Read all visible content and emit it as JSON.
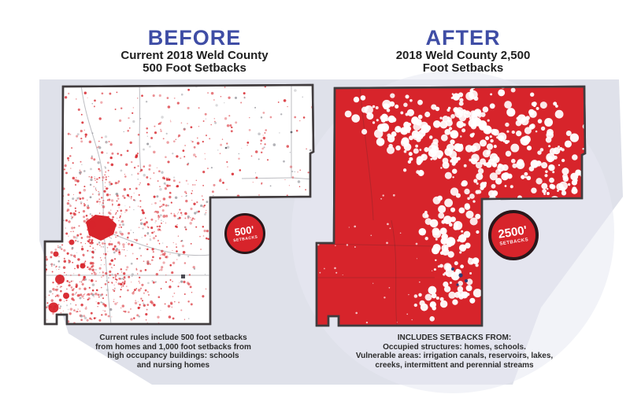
{
  "panels": [
    {
      "heading": "BEFORE",
      "subtitle": [
        "Current 2018 Weld County",
        "500 Foot Setbacks"
      ],
      "badge": {
        "value": "500'",
        "label": "SETBACKS"
      },
      "caption": [
        "Current rules include 500 foot setbacks",
        "from homes and 1,000 foot setbacks from",
        "high occupancy buildings: schools",
        "and nursing homes"
      ]
    },
    {
      "heading": "AFTER",
      "subtitle": [
        "2018 Weld County 2,500",
        "Foot Setbacks"
      ],
      "badge": {
        "value": "2500'",
        "label": "SETBACKS"
      },
      "caption": [
        "INCLUDES SETBACKS FROM:",
        "Occupied structures: homes, schools.",
        "Vulnerable areas: irrigation canals, reservoirs, lakes,",
        "creeks, intermittent and perennial streams"
      ]
    }
  ],
  "colors": {
    "heading_blue": "#3f4da5",
    "setback_red": "#d7242b",
    "backdrop_lavender": "#dfe1ea",
    "backdrop_light_circle": "#e8eaf2",
    "map_fill_before": "#ffffff",
    "map_outline": "#413c3e",
    "badge_ring": "#2a171a",
    "caption_text": "#2b2b2b",
    "road_gray": "#bdbdc2",
    "speck_navy": "#2f3a72",
    "speck_gray": "#9a9aa0"
  }
}
